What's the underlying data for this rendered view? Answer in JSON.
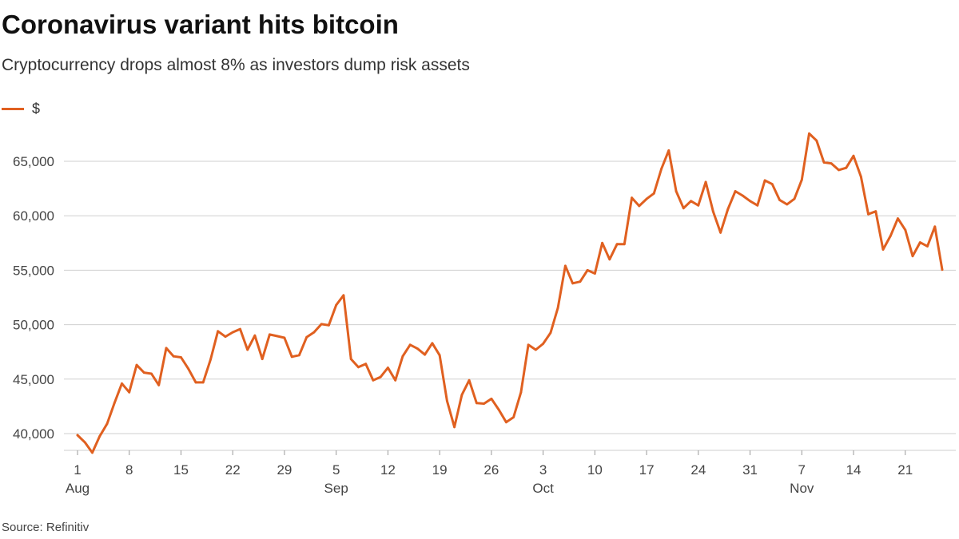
{
  "title": "Coronavirus variant hits bitcoin",
  "subtitle": "Cryptocurrency drops almost 8% as investors dump risk assets",
  "source": "Source: Refinitiv",
  "colors": {
    "line": "#e06020",
    "grid": "#cfcfcf",
    "text": "#444444"
  },
  "chart_data": {
    "type": "line",
    "title": "Coronavirus variant hits bitcoin",
    "subtitle": "Cryptocurrency drops almost 8% as investors dump risk assets",
    "xlabel": "",
    "ylabel": "",
    "legend_position": "top-left",
    "grid": true,
    "ylim": [
      38000,
      68000
    ],
    "y_ticks": [
      40000,
      45000,
      50000,
      55000,
      60000,
      65000
    ],
    "y_tick_labels": [
      "40,000",
      "45,000",
      "50,000",
      "55,000",
      "60,000",
      "65,000"
    ],
    "x_range": [
      "2021-08-01",
      "2021-11-26"
    ],
    "x_ticks": [
      {
        "date": "2021-08-01",
        "label": "1",
        "month": "Aug"
      },
      {
        "date": "2021-08-08",
        "label": "8"
      },
      {
        "date": "2021-08-15",
        "label": "15"
      },
      {
        "date": "2021-08-22",
        "label": "22"
      },
      {
        "date": "2021-08-29",
        "label": "29"
      },
      {
        "date": "2021-09-05",
        "label": "5",
        "month": "Sep"
      },
      {
        "date": "2021-09-12",
        "label": "12"
      },
      {
        "date": "2021-09-19",
        "label": "19"
      },
      {
        "date": "2021-09-26",
        "label": "26"
      },
      {
        "date": "2021-10-03",
        "label": "3",
        "month": "Oct"
      },
      {
        "date": "2021-10-10",
        "label": "10"
      },
      {
        "date": "2021-10-17",
        "label": "17"
      },
      {
        "date": "2021-10-24",
        "label": "24"
      },
      {
        "date": "2021-10-31",
        "label": "31"
      },
      {
        "date": "2021-11-07",
        "label": "7",
        "month": "Nov"
      },
      {
        "date": "2021-11-14",
        "label": "14"
      },
      {
        "date": "2021-11-21",
        "label": "21"
      }
    ],
    "series": [
      {
        "name": "$",
        "x": [
          "2021-08-01",
          "2021-08-02",
          "2021-08-03",
          "2021-08-04",
          "2021-08-05",
          "2021-08-06",
          "2021-08-07",
          "2021-08-08",
          "2021-08-09",
          "2021-08-10",
          "2021-08-11",
          "2021-08-12",
          "2021-08-13",
          "2021-08-14",
          "2021-08-15",
          "2021-08-16",
          "2021-08-17",
          "2021-08-18",
          "2021-08-19",
          "2021-08-20",
          "2021-08-21",
          "2021-08-22",
          "2021-08-23",
          "2021-08-24",
          "2021-08-25",
          "2021-08-26",
          "2021-08-27",
          "2021-08-28",
          "2021-08-29",
          "2021-08-30",
          "2021-08-31",
          "2021-09-01",
          "2021-09-02",
          "2021-09-03",
          "2021-09-04",
          "2021-09-05",
          "2021-09-06",
          "2021-09-07",
          "2021-09-08",
          "2021-09-09",
          "2021-09-10",
          "2021-09-11",
          "2021-09-12",
          "2021-09-13",
          "2021-09-14",
          "2021-09-15",
          "2021-09-16",
          "2021-09-17",
          "2021-09-18",
          "2021-09-19",
          "2021-09-20",
          "2021-09-21",
          "2021-09-22",
          "2021-09-23",
          "2021-09-24",
          "2021-09-25",
          "2021-09-26",
          "2021-09-27",
          "2021-09-28",
          "2021-09-29",
          "2021-09-30",
          "2021-10-01",
          "2021-10-02",
          "2021-10-03",
          "2021-10-04",
          "2021-10-05",
          "2021-10-06",
          "2021-10-07",
          "2021-10-08",
          "2021-10-09",
          "2021-10-10",
          "2021-10-11",
          "2021-10-12",
          "2021-10-13",
          "2021-10-14",
          "2021-10-15",
          "2021-10-16",
          "2021-10-17",
          "2021-10-18",
          "2021-10-19",
          "2021-10-20",
          "2021-10-21",
          "2021-10-22",
          "2021-10-23",
          "2021-10-24",
          "2021-10-25",
          "2021-10-26",
          "2021-10-27",
          "2021-10-28",
          "2021-10-29",
          "2021-10-30",
          "2021-10-31",
          "2021-11-01",
          "2021-11-02",
          "2021-11-03",
          "2021-11-04",
          "2021-11-05",
          "2021-11-06",
          "2021-11-07",
          "2021-11-08",
          "2021-11-09",
          "2021-11-10",
          "2021-11-11",
          "2021-11-12",
          "2021-11-13",
          "2021-11-14",
          "2021-11-15",
          "2021-11-16",
          "2021-11-17",
          "2021-11-18",
          "2021-11-19",
          "2021-11-20",
          "2021-11-21",
          "2021-11-22",
          "2021-11-23",
          "2021-11-24",
          "2021-11-25",
          "2021-11-26"
        ],
        "values": [
          39850,
          39200,
          38250,
          39750,
          40900,
          42800,
          44600,
          43800,
          46300,
          45600,
          45500,
          44450,
          47850,
          47100,
          47000,
          45950,
          44700,
          44700,
          46800,
          49400,
          48900,
          49300,
          49600,
          47700,
          49000,
          46850,
          49100,
          48950,
          48800,
          47050,
          47200,
          48850,
          49300,
          50050,
          49950,
          51800,
          52700,
          46850,
          46100,
          46400,
          44900,
          45200,
          46050,
          44900,
          47100,
          48150,
          47800,
          47250,
          48300,
          47200,
          43000,
          40600,
          43550,
          44900,
          42800,
          42750,
          43200,
          42200,
          41050,
          41500,
          43800,
          48150,
          47700,
          48250,
          49250,
          51550,
          55400,
          53800,
          53950,
          55000,
          54700,
          57500,
          56000,
          57400,
          57400,
          61650,
          60900,
          61550,
          62050,
          64300,
          66000,
          62250,
          60700,
          61350,
          60950,
          63100,
          60400,
          58450,
          60600,
          62250,
          61850,
          61350,
          60950,
          63250,
          62900,
          61450,
          61050,
          61550,
          63300,
          67550,
          66900,
          64900,
          64800,
          64200,
          64400,
          65500,
          63600,
          60150,
          60400,
          56900,
          58150,
          59750,
          58700,
          56300,
          57550,
          57200,
          59000,
          55050
        ]
      }
    ]
  }
}
